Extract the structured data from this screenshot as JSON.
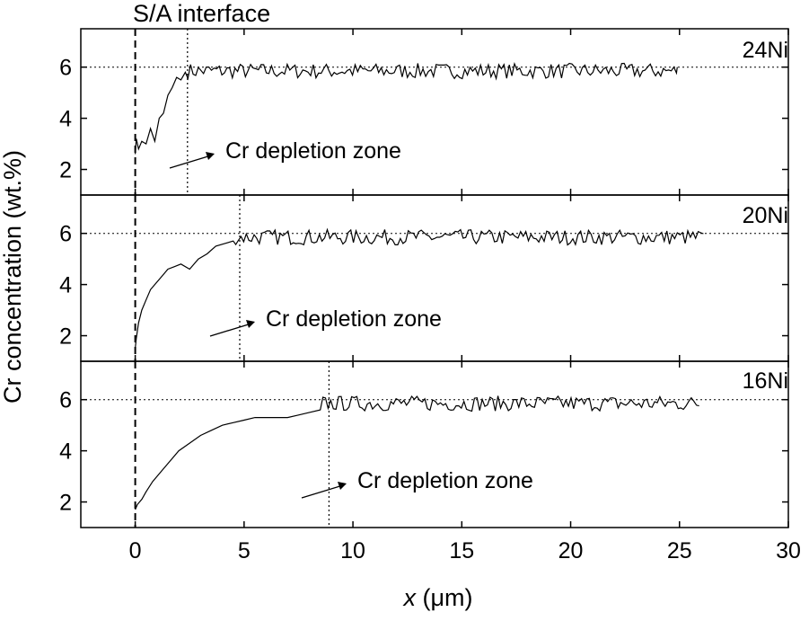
{
  "chart_data": {
    "type": "line",
    "interface_label": "S/A interface",
    "xlabel_var": "x",
    "xlabel_unit": " (μm)",
    "ylabel": "Cr concentration (wt.%)",
    "xlim": [
      -2.5,
      30
    ],
    "x_ticks": [
      0,
      5,
      10,
      15,
      20,
      25,
      30
    ],
    "ylim": [
      1,
      7.5
    ],
    "y_ticks": [
      2,
      4,
      6
    ],
    "interface_x": 0,
    "reference_y": 6,
    "colors": {
      "line": "#000000",
      "background": "#ffffff"
    },
    "panels": [
      {
        "name": "24Ni",
        "zone_label": "Cr depletion zone",
        "zone_boundary_x": 2.4,
        "x_end": 24.9,
        "x": [
          0,
          0.05,
          0.15,
          0.3,
          0.5,
          0.7,
          0.9,
          1.1,
          1.3,
          1.5,
          1.7,
          1.9,
          2.1,
          2.3
        ],
        "y": [
          2.6,
          3.2,
          2.8,
          3.1,
          3.0,
          3.6,
          3.1,
          4.0,
          4.2,
          4.9,
          5.2,
          5.6,
          5.5,
          5.8
        ],
        "plateau_mean": 5.85,
        "plateau_amplitude": 0.3
      },
      {
        "name": "20Ni",
        "zone_label": "Cr depletion zone",
        "zone_boundary_x": 4.8,
        "x_end": 26.1,
        "x": [
          0,
          0.05,
          0.15,
          0.3,
          0.5,
          0.7,
          0.9,
          1.2,
          1.5,
          1.8,
          2.1,
          2.5,
          2.9,
          3.3,
          3.7,
          4.1,
          4.5
        ],
        "y": [
          1.5,
          1.9,
          2.5,
          3.0,
          3.4,
          3.8,
          4.0,
          4.3,
          4.6,
          4.7,
          4.8,
          4.6,
          5.0,
          5.2,
          5.5,
          5.6,
          5.7
        ],
        "plateau_mean": 5.85,
        "plateau_amplitude": 0.3
      },
      {
        "name": "16Ni",
        "zone_label": "Cr depletion zone",
        "zone_boundary_x": 8.9,
        "x_end": 25.9,
        "x": [
          0,
          0.1,
          0.3,
          0.5,
          0.8,
          1.2,
          1.6,
          2.0,
          2.5,
          3.0,
          3.5,
          4.0,
          4.5,
          5.0,
          5.5,
          6.0,
          6.5,
          7.0,
          7.5,
          8.0,
          8.5
        ],
        "y": [
          1.7,
          1.9,
          2.1,
          2.4,
          2.8,
          3.2,
          3.6,
          4.0,
          4.3,
          4.6,
          4.8,
          5.0,
          5.1,
          5.2,
          5.3,
          5.3,
          5.3,
          5.3,
          5.4,
          5.5,
          5.6
        ],
        "plateau_mean": 5.85,
        "plateau_amplitude": 0.3
      }
    ]
  }
}
